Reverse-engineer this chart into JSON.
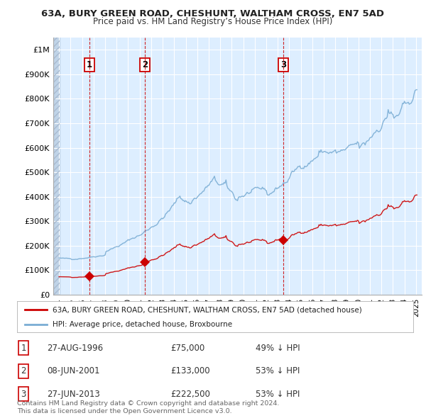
{
  "title": "63A, BURY GREEN ROAD, CHESHUNT, WALTHAM CROSS, EN7 5AD",
  "subtitle": "Price paid vs. HM Land Registry’s House Price Index (HPI)",
  "sales": [
    {
      "date_num": 1996.648,
      "price": 75000,
      "label": "1"
    },
    {
      "date_num": 2001.44,
      "price": 133000,
      "label": "2"
    },
    {
      "date_num": 2013.49,
      "price": 222500,
      "label": "3"
    }
  ],
  "sale_dates_str": [
    "27-AUG-1996",
    "08-JUN-2001",
    "27-JUN-2013"
  ],
  "sale_prices_str": [
    "£75,000",
    "£133,000",
    "£222,500"
  ],
  "sale_pcts": [
    "49% ↓ HPI",
    "53% ↓ HPI",
    "53% ↓ HPI"
  ],
  "xlim": [
    1993.5,
    2025.5
  ],
  "ylim": [
    0,
    1050000
  ],
  "yticks": [
    0,
    100000,
    200000,
    300000,
    400000,
    500000,
    600000,
    700000,
    800000,
    900000,
    1000000
  ],
  "ytick_labels": [
    "£0",
    "£100K",
    "£200K",
    "£300K",
    "£400K",
    "£500K",
    "£600K",
    "£700K",
    "£800K",
    "£900K",
    "£1M"
  ],
  "xticks": [
    1994,
    1995,
    1996,
    1997,
    1998,
    1999,
    2000,
    2001,
    2002,
    2003,
    2004,
    2005,
    2006,
    2007,
    2008,
    2009,
    2010,
    2011,
    2012,
    2013,
    2014,
    2015,
    2016,
    2017,
    2018,
    2019,
    2020,
    2021,
    2022,
    2023,
    2024,
    2025
  ],
  "bg_color": "#ddeeff",
  "grid_color": "#ffffff",
  "red_color": "#cc0000",
  "blue_color": "#7aadd4",
  "legend_red_label": "63A, BURY GREEN ROAD, CHESHUNT, WALTHAM CROSS, EN7 5AD (detached house)",
  "legend_blue_label": "HPI: Average price, detached house, Broxbourne",
  "footnote": "Contains HM Land Registry data © Crown copyright and database right 2024.\nThis data is licensed under the Open Government Licence v3.0."
}
